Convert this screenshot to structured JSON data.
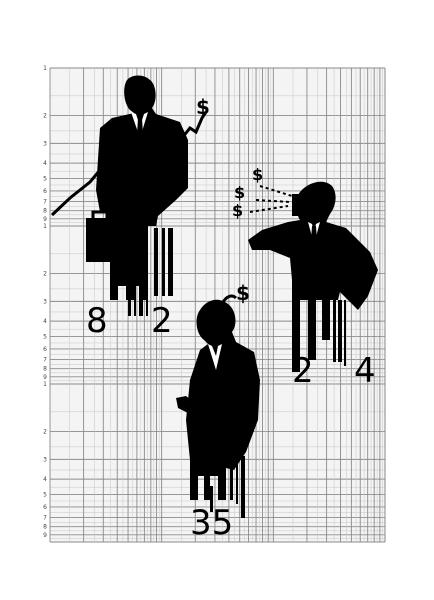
{
  "colors": {
    "background": "#ffffff",
    "ink": "#000000",
    "grid_major": "#8a8a8a",
    "grid_minor": "#c6c6c6",
    "paper": "#f4f4f4"
  },
  "scale_left": {
    "cycle_labels": [
      "1",
      "2",
      "3",
      "4",
      "5",
      "6",
      "7",
      "8",
      "9"
    ]
  },
  "figures": [
    {
      "id": "businessman-with-briefcase",
      "numbers": [
        "8",
        "2"
      ],
      "dollar_signs": [
        "$"
      ]
    },
    {
      "id": "businessman-on-phone",
      "numbers": [
        "2",
        "4"
      ],
      "dollar_signs": [
        "$",
        "$",
        "$"
      ]
    },
    {
      "id": "businessman-counting",
      "numbers": [
        "35"
      ],
      "dollar_signs": [
        "$"
      ]
    }
  ]
}
